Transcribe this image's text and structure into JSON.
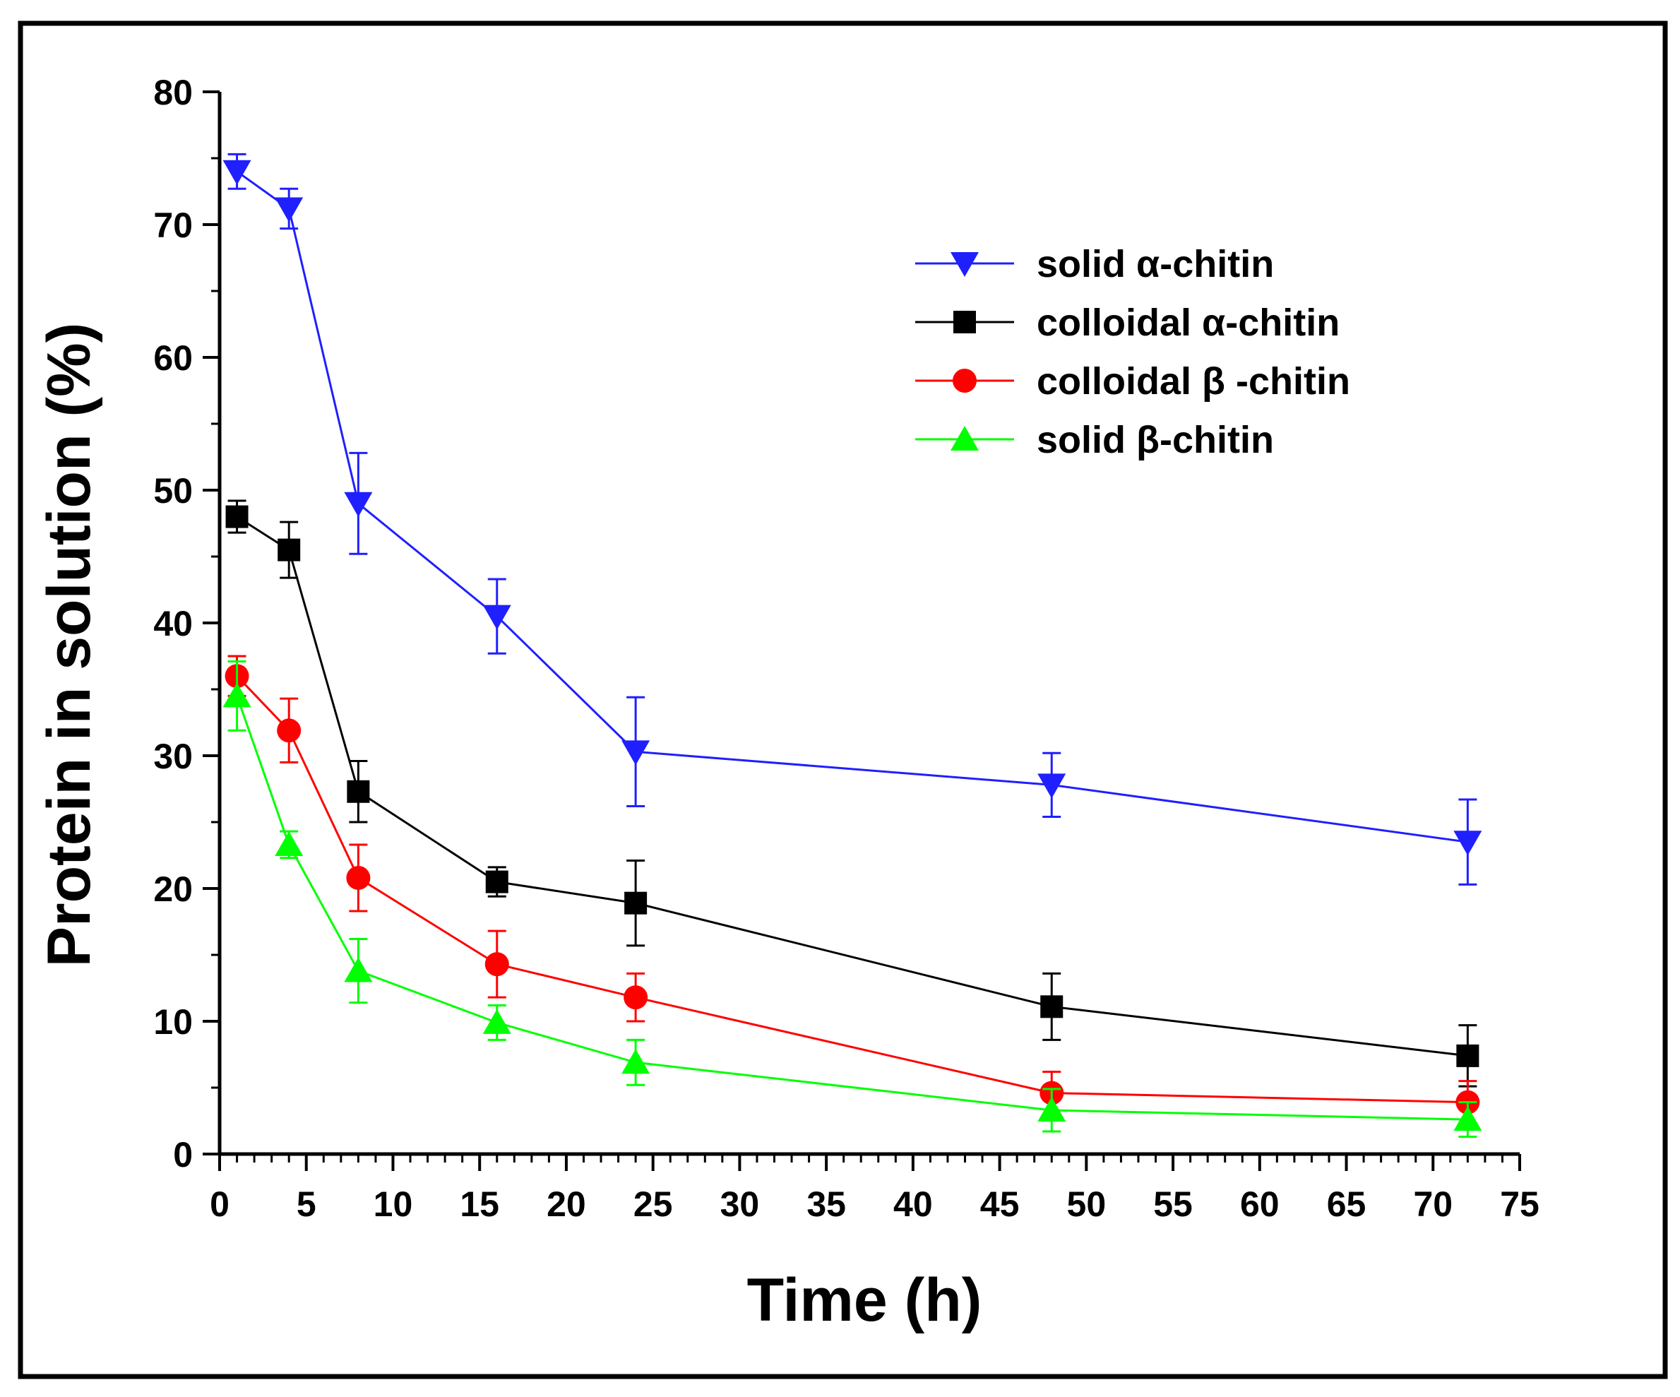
{
  "chart_data": {
    "type": "line",
    "title": "",
    "xlabel": "Time (h)",
    "ylabel": "Protein in solution (%)",
    "xlim": [
      0,
      75
    ],
    "ylim": [
      0,
      80
    ],
    "xticks": [
      0,
      5,
      10,
      15,
      20,
      25,
      30,
      35,
      40,
      45,
      50,
      55,
      60,
      65,
      70,
      75
    ],
    "yticks": [
      0,
      10,
      20,
      30,
      40,
      50,
      60,
      70,
      80
    ],
    "x_minor_step": 1,
    "y_minor_step": 5,
    "grid": false,
    "legend_position": "top-right",
    "x": [
      1,
      4,
      8,
      16,
      24,
      48,
      72
    ],
    "series": [
      {
        "name": "solid α-chitin",
        "color": "#1f1fff",
        "marker": "triangle-down",
        "values": [
          74.0,
          71.2,
          49.0,
          40.5,
          30.3,
          27.8,
          23.5
        ],
        "errors": [
          1.3,
          1.5,
          3.8,
          2.8,
          4.1,
          2.4,
          3.2
        ]
      },
      {
        "name": "colloidal α-chitin",
        "color": "#000000",
        "marker": "square",
        "values": [
          48.0,
          45.5,
          27.3,
          20.5,
          18.9,
          11.1,
          7.4
        ],
        "errors": [
          1.2,
          2.1,
          2.3,
          1.1,
          3.2,
          2.5,
          2.3
        ]
      },
      {
        "name": "colloidal β -chitin",
        "color": "#ff0000",
        "marker": "circle",
        "values": [
          36.0,
          31.9,
          20.8,
          14.3,
          11.8,
          4.6,
          3.9
        ],
        "errors": [
          1.5,
          2.4,
          2.5,
          2.5,
          1.8,
          1.6,
          1.6
        ]
      },
      {
        "name": "solid β-chitin",
        "color": "#00ff00",
        "marker": "triangle-up",
        "values": [
          34.5,
          23.3,
          13.8,
          9.9,
          6.9,
          3.3,
          2.6
        ],
        "errors": [
          2.6,
          1.0,
          2.4,
          1.3,
          1.7,
          1.6,
          1.3
        ]
      }
    ]
  }
}
